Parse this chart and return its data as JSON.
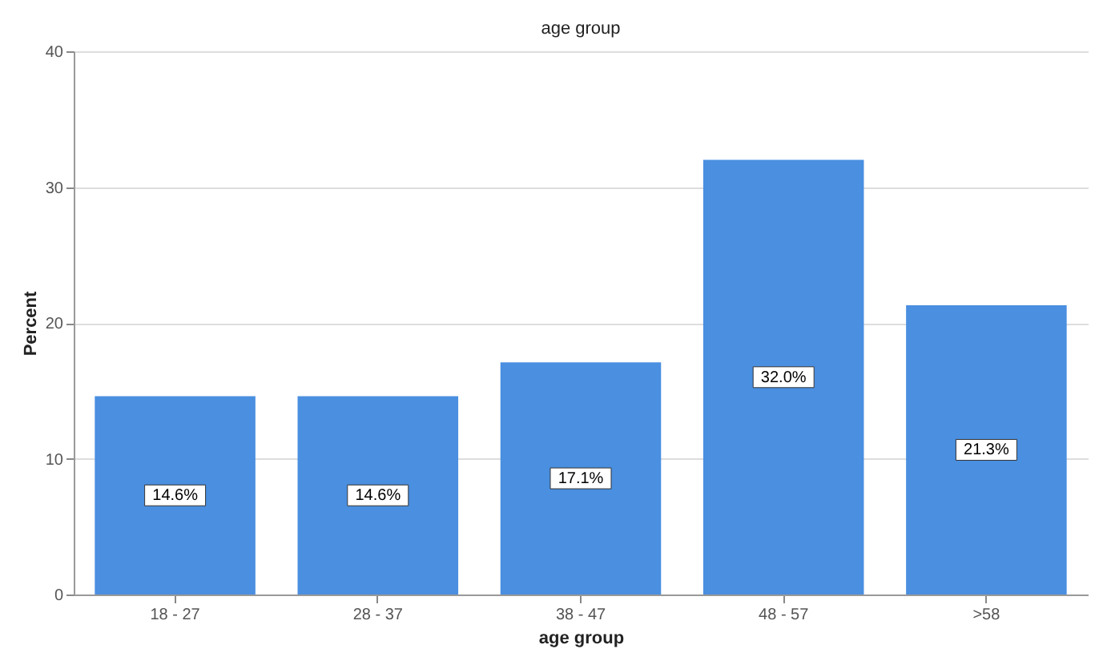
{
  "chart_data": {
    "type": "bar",
    "title": "age group",
    "xlabel": "age group",
    "ylabel": "Percent",
    "categories": [
      "18 - 27",
      "28 - 37",
      "38 - 47",
      "48 - 57",
      ">58"
    ],
    "values": [
      14.6,
      14.6,
      17.1,
      32.0,
      21.3
    ],
    "value_labels": [
      "14.6%",
      "14.6%",
      "17.1%",
      "32.0%",
      "21.3%"
    ],
    "color": "#4a8fe0",
    "ylim": [
      0,
      40
    ],
    "yticks": [
      0,
      10,
      20,
      30,
      40
    ],
    "grid": "y"
  }
}
